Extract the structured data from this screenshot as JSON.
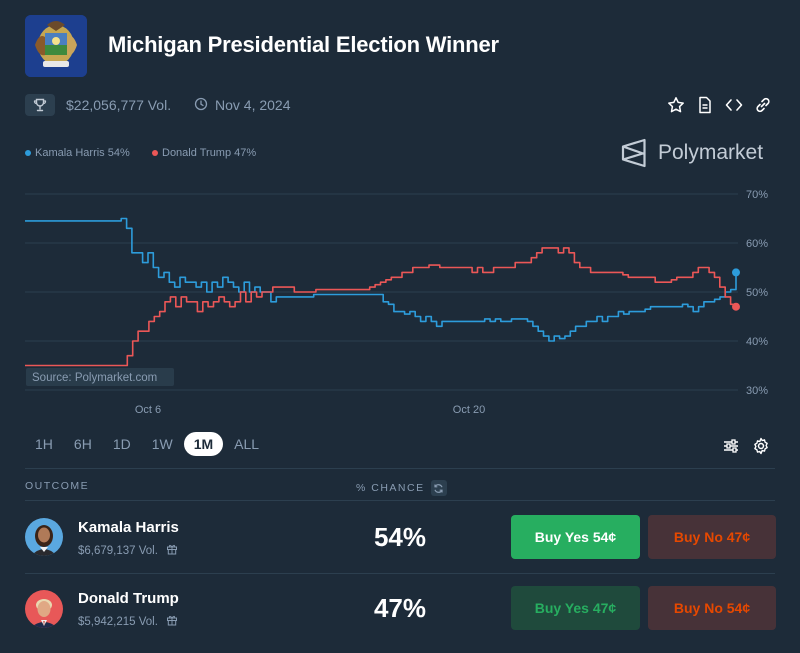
{
  "market": {
    "title": "Michigan Presidential Election Winner",
    "volume": "$22,056,777 Vol.",
    "end_date": "Nov 4, 2024"
  },
  "icons": {
    "flag": "michigan-flag-icon",
    "trophy": "trophy-icon",
    "clock": "clock-icon",
    "star": "star-icon",
    "document": "document-icon",
    "embed": "code-icon",
    "link": "link-icon",
    "filter": "sliders-icon",
    "settings": "gear-icon",
    "refresh": "refresh-icon",
    "gift": "gift-icon"
  },
  "brand": {
    "name": "Polymarket"
  },
  "legend": [
    {
      "label": "Kamala Harris 54%",
      "color": "#2d9cdb"
    },
    {
      "label": "Donald Trump 47%",
      "color": "#eb5757"
    }
  ],
  "chart_data": {
    "type": "line",
    "source_label": "Source: Polymarket.com",
    "x_ticks": [
      "Oct 6",
      "Oct 20"
    ],
    "y_ticks": [
      "70%",
      "60%",
      "50%",
      "40%",
      "30%"
    ],
    "ylim": [
      30,
      70
    ],
    "grid": "horizontal",
    "legend_position": "top-left",
    "series": [
      {
        "name": "Kamala Harris",
        "color": "#2d9cdb",
        "values": [
          64.5,
          64.5,
          64.5,
          64.5,
          64.5,
          64.5,
          64.5,
          64.5,
          64.5,
          64.5,
          64.5,
          64.5,
          64.5,
          64.5,
          64.5,
          64.5,
          64.5,
          64.5,
          65,
          63,
          58,
          58,
          56,
          58,
          55,
          53,
          54,
          52,
          51,
          53,
          52,
          52,
          51,
          52,
          50,
          52,
          51,
          53,
          52,
          51,
          50,
          52,
          50,
          51,
          50,
          50,
          48,
          49,
          49,
          49,
          49,
          49,
          49,
          49,
          49.5,
          49.5,
          49.5,
          49.5,
          49.5,
          49.5,
          49.5,
          49.5,
          49.5,
          49.5,
          49.5,
          49.5,
          49.5,
          48,
          47.5,
          46,
          46,
          45.5,
          46,
          45,
          44,
          45,
          44,
          43,
          44,
          44,
          44,
          44,
          44,
          44,
          44,
          44,
          44.5,
          44,
          44.5,
          44,
          44,
          44.5,
          44.5,
          44.5,
          44,
          43,
          42,
          41,
          40,
          41,
          40.5,
          41,
          42,
          43,
          43,
          44,
          44,
          45,
          44,
          45,
          45,
          46,
          45.5,
          46,
          46,
          46,
          46.5,
          47,
          47,
          47,
          47,
          47,
          47,
          47.5,
          47,
          46,
          47,
          48,
          48,
          48.5,
          49,
          50,
          50.5,
          53.5
        ],
        "end_label_value": 54
      },
      {
        "name": "Donald Trump",
        "color": "#eb5757",
        "values": [
          35,
          35,
          35,
          35,
          35,
          35,
          35,
          35,
          35,
          35,
          35,
          35,
          35,
          35,
          35,
          35,
          35,
          35,
          35,
          37,
          40,
          42,
          42,
          44,
          45,
          46,
          48,
          49,
          47,
          49,
          48,
          48,
          46,
          48,
          47,
          48,
          49,
          48,
          47,
          48,
          50,
          48,
          50,
          49,
          50,
          50,
          51,
          51,
          51,
          51,
          50,
          50,
          50,
          50,
          50.5,
          50.5,
          50.5,
          50.5,
          50.5,
          50.5,
          50.5,
          50.5,
          50.5,
          50.5,
          51,
          51.5,
          52,
          52.5,
          53,
          53,
          54,
          54,
          55,
          55,
          55,
          55.5,
          55.5,
          55,
          55,
          55,
          55,
          55,
          55,
          54,
          55,
          54,
          54,
          55,
          55,
          55,
          55,
          56,
          56,
          56,
          57,
          58,
          59,
          59,
          59,
          58,
          59,
          58,
          56,
          55,
          55,
          54,
          54,
          54,
          54,
          54,
          54,
          53.5,
          53,
          53,
          53,
          53,
          53,
          52,
          52,
          52,
          52.5,
          53,
          53,
          53,
          54,
          55,
          55,
          54,
          53,
          51,
          49,
          47.5,
          46.5
        ],
        "end_label_value": 47
      }
    ]
  },
  "range_tabs": [
    "1H",
    "6H",
    "1D",
    "1W",
    "1M",
    "ALL"
  ],
  "active_range": "1M",
  "table": {
    "outcome_header": "OUTCOME",
    "chance_header": "% CHANCE",
    "rows": [
      {
        "name": "Kamala Harris",
        "volume": "$6,679,137 Vol.",
        "chance": "54%",
        "buy_yes": "Buy Yes 54¢",
        "buy_no": "Buy No 47¢"
      },
      {
        "name": "Donald Trump",
        "volume": "$5,942,215 Vol.",
        "chance": "47%",
        "buy_yes": "Buy Yes 47¢",
        "buy_no": "Buy No 54¢"
      }
    ]
  }
}
